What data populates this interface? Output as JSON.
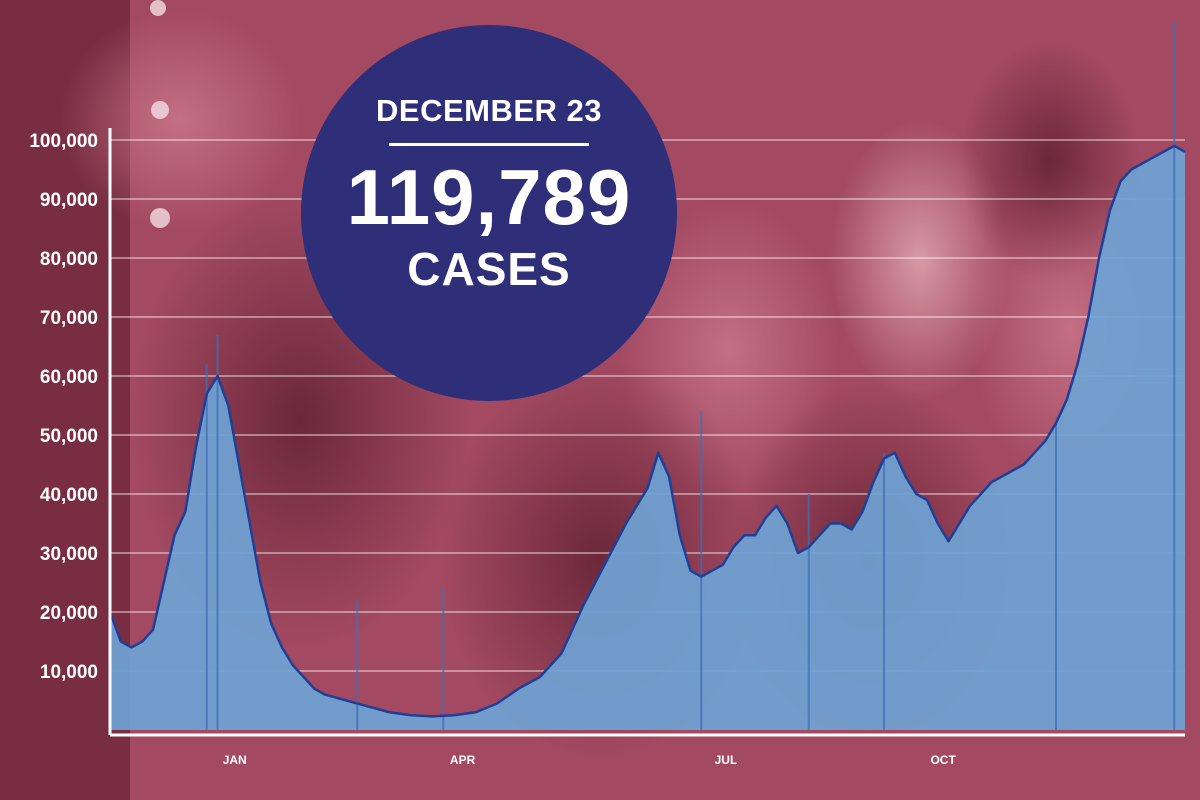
{
  "badge": {
    "date": "DECEMBER 23",
    "value": "119,789",
    "unit": "CASES"
  },
  "colors": {
    "background_tint": "#a34a62",
    "badge_fill": "#2e2f78",
    "area_fill": "#6ea3d4",
    "line": "#1f3f96",
    "spikes": "#3d6fb6"
  },
  "chart_data": {
    "type": "area",
    "title": "",
    "xlabel": "",
    "ylabel": "",
    "ylim": [
      0,
      100000
    ],
    "grid": true,
    "y_ticks": [
      10000,
      20000,
      30000,
      40000,
      50000,
      60000,
      70000,
      80000,
      90000,
      100000
    ],
    "y_tick_labels": [
      "10,000",
      "20,000",
      "30,000",
      "40,000",
      "50,000",
      "60,000",
      "70,000",
      "80,000",
      "90,000",
      "100,000"
    ],
    "x_tick_labels": [
      "JAN",
      "APR",
      "JUL",
      "OCT"
    ],
    "x_tick_positions": [
      11.6,
      32.8,
      57.3,
      77.5
    ],
    "series": [
      {
        "x": [
          0,
          1,
          2,
          3,
          4,
          5,
          6,
          7,
          8,
          9,
          10,
          11,
          12,
          13,
          14,
          15,
          16,
          17,
          18,
          19,
          20,
          22,
          24,
          26,
          28,
          30,
          32,
          34,
          36,
          38,
          40,
          42,
          44,
          46,
          48,
          50,
          51,
          52,
          53,
          54,
          55,
          56,
          57,
          58,
          59,
          60,
          61,
          62,
          63,
          64,
          65,
          66,
          67,
          68,
          69,
          70,
          71,
          72,
          73,
          74,
          75,
          76,
          77,
          78,
          79,
          80,
          81,
          82,
          83,
          84,
          85,
          86,
          87,
          88,
          89,
          90,
          91,
          92,
          93,
          94,
          95,
          96,
          97,
          98,
          99,
          100
        ],
        "values": [
          20000,
          15000,
          14000,
          15000,
          17000,
          25000,
          33000,
          37000,
          48000,
          57000,
          60000,
          55000,
          45000,
          35000,
          25000,
          18000,
          14000,
          11000,
          9000,
          7000,
          6000,
          5000,
          4000,
          3000,
          2500,
          2300,
          2500,
          3000,
          4500,
          7000,
          9000,
          13000,
          21000,
          28000,
          35000,
          41000,
          47000,
          43000,
          33000,
          27000,
          26000,
          27000,
          28000,
          31000,
          33000,
          33000,
          36000,
          38000,
          35000,
          30000,
          31000,
          33000,
          35000,
          35000,
          34000,
          37000,
          42000,
          46000,
          47000,
          43000,
          40000,
          39000,
          35000,
          32000,
          35000,
          38000,
          40000,
          42000,
          43000,
          44000,
          45000,
          47000,
          49000,
          52000,
          56000,
          62000,
          70000,
          80000,
          88000,
          93000,
          95000,
          96000,
          97000,
          98000,
          99000,
          98000
        ]
      }
    ],
    "spikes": {
      "x": [
        9,
        10,
        23,
        31,
        55,
        65,
        72,
        88,
        99
      ],
      "values": [
        62000,
        67000,
        22000,
        24000,
        54000,
        40000,
        47000,
        53000,
        120000
      ]
    }
  }
}
